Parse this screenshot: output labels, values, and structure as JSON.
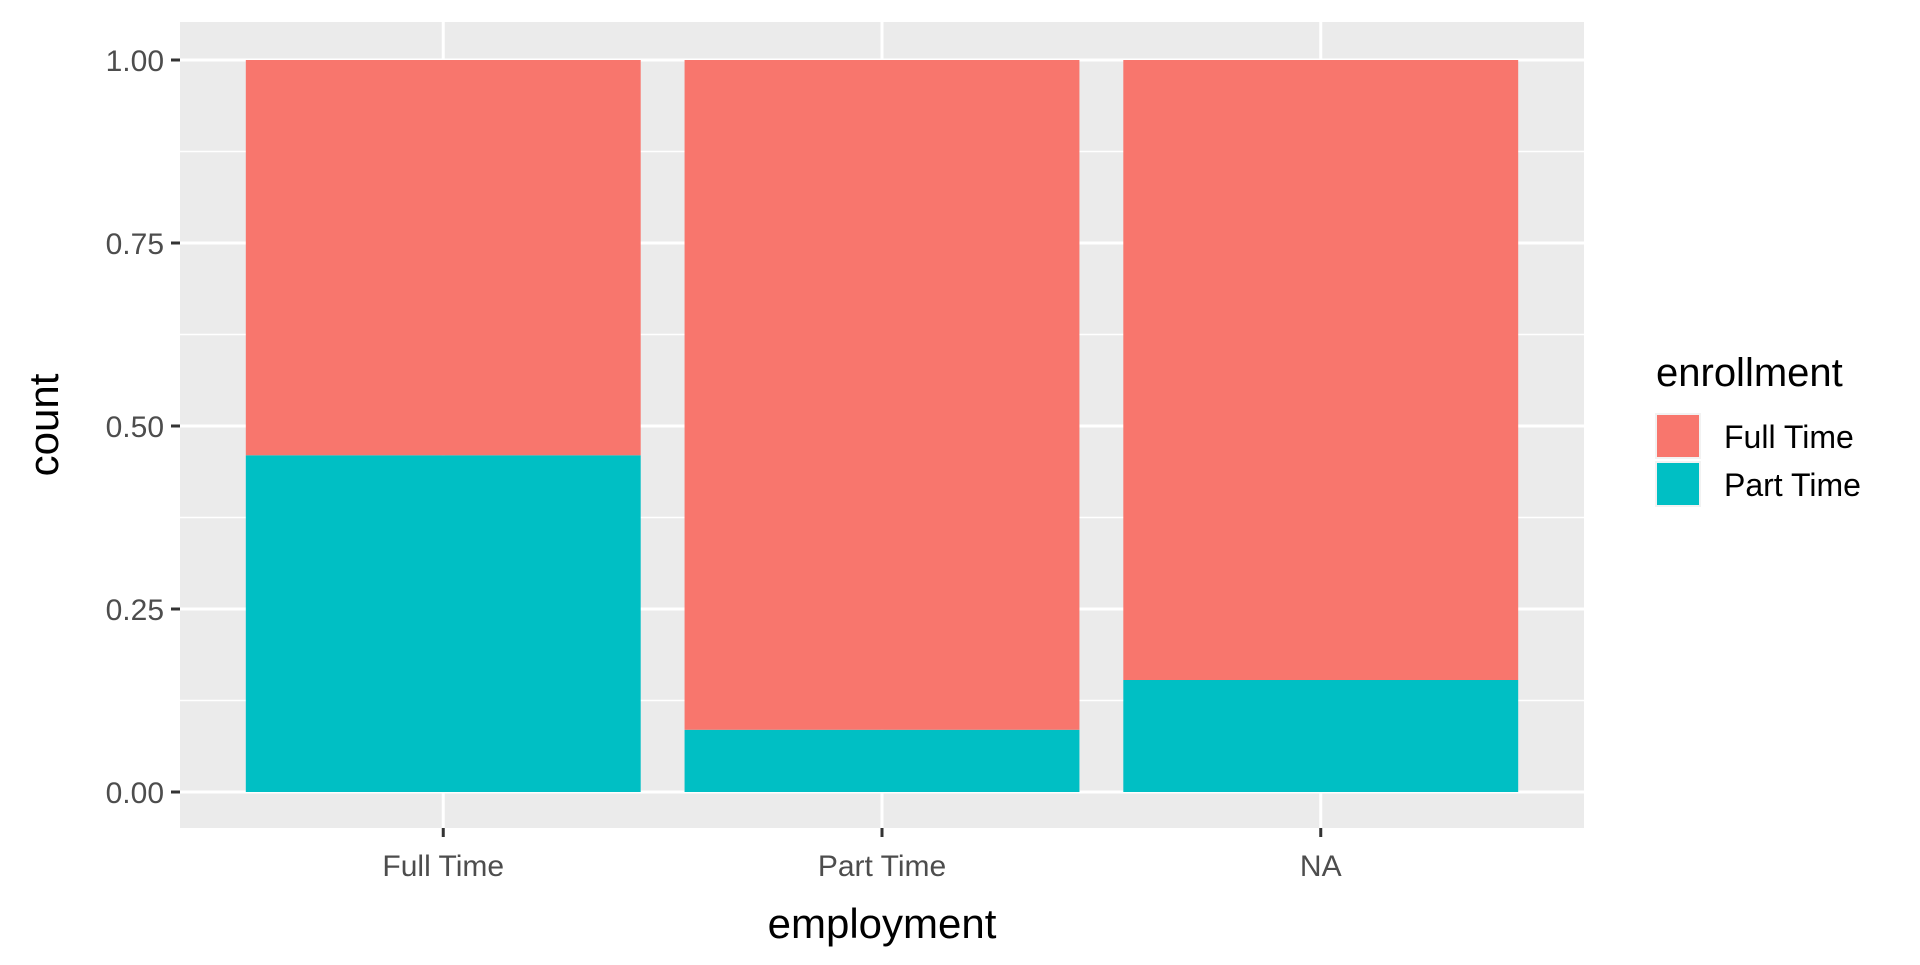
{
  "chart_data": {
    "type": "bar",
    "stacked": true,
    "position": "fill",
    "title": "",
    "xlabel": "employment",
    "ylabel": "count",
    "categories": [
      "Full Time",
      "Part Time",
      "NA"
    ],
    "ylim": [
      0,
      1
    ],
    "yticks": [
      "0.00",
      "0.25",
      "0.50",
      "0.75",
      "1.00"
    ],
    "ytick_values": [
      0,
      0.25,
      0.5,
      0.75,
      1.0
    ],
    "grid": true,
    "legend": {
      "title": "enrollment",
      "placement": "right"
    },
    "series": [
      {
        "name": "Part Time",
        "color": "#00BFC4",
        "values": [
          0.46,
          0.085,
          0.153
        ]
      },
      {
        "name": "Full Time",
        "color": "#F8766D",
        "values": [
          0.54,
          0.915,
          0.847
        ]
      }
    ],
    "legend_order": [
      "Full Time",
      "Part Time"
    ],
    "colors": {
      "panel_background": "#EBEBEB",
      "grid": "#FFFFFF",
      "tick_mark": "#333333"
    }
  }
}
